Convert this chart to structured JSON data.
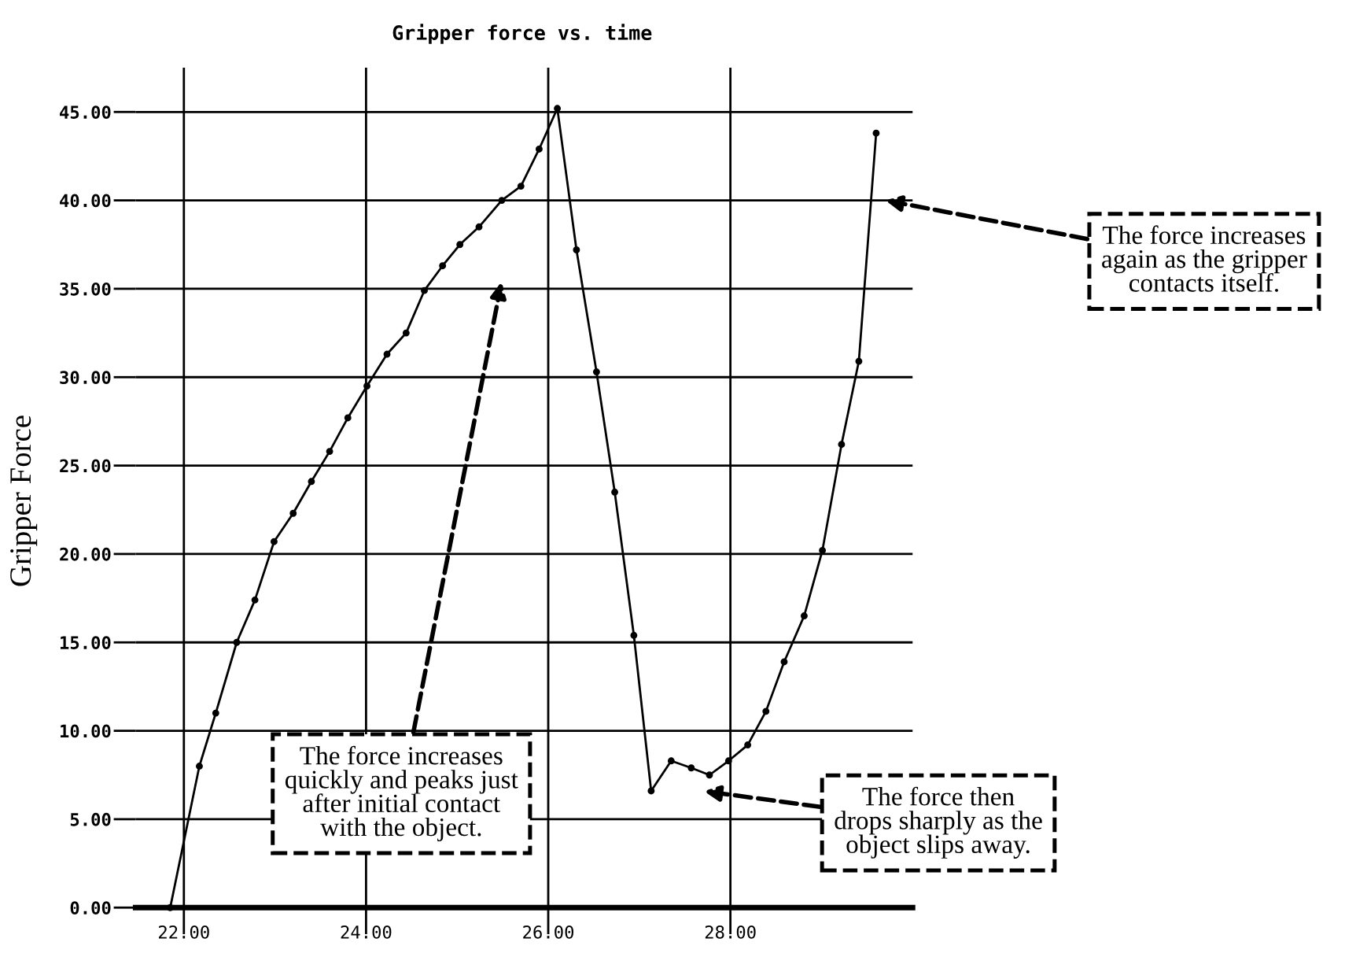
{
  "chart_data": {
    "type": "line",
    "title": "Gripper force vs. time",
    "ylabel": "Gripper Force",
    "series": [
      {
        "color": "#000000",
        "marker": "circle",
        "x": [
          21.85,
          22.17,
          22.35,
          22.58,
          22.78,
          22.99,
          23.2,
          23.4,
          23.6,
          23.8,
          24.01,
          24.23,
          24.44,
          24.64,
          24.84,
          25.03,
          25.24,
          25.49,
          25.7,
          25.9,
          26.1,
          26.31,
          26.53,
          26.73,
          26.94,
          27.13,
          27.35,
          27.57,
          27.77,
          27.98,
          28.19,
          28.39,
          28.59,
          28.81,
          29.01,
          29.22,
          29.41,
          29.6
        ],
        "values": [
          0,
          8.0,
          11.0,
          15.0,
          17.4,
          20.7,
          22.3,
          24.1,
          25.8,
          27.7,
          29.5,
          31.3,
          32.5,
          34.9,
          36.3,
          37.5,
          38.5,
          40.0,
          40.8,
          42.9,
          45.2,
          37.2,
          30.3,
          23.5,
          15.4,
          6.6,
          8.3,
          7.9,
          7.5,
          8.3,
          9.2,
          11.1,
          13.9,
          16.5,
          20.2,
          26.2,
          30.9,
          43.8
        ]
      }
    ],
    "xlim": [
      21.47,
      30.0
    ],
    "ylim": [
      -1.5,
      47.5
    ],
    "xticks": [
      {
        "value": 22,
        "label": "22.00"
      },
      {
        "value": 24,
        "label": "24.00"
      },
      {
        "value": 26,
        "label": "26.00"
      },
      {
        "value": 28,
        "label": "28.00"
      }
    ],
    "yticks": [
      {
        "value": 0,
        "label": "0.00"
      },
      {
        "value": 5,
        "label": "5.00"
      },
      {
        "value": 10,
        "label": "10.00"
      },
      {
        "value": 15,
        "label": "15.00"
      },
      {
        "value": 20,
        "label": "20.00"
      },
      {
        "value": 25,
        "label": "25.00"
      },
      {
        "value": 30,
        "label": "30.00"
      },
      {
        "value": 35,
        "label": "35.00"
      },
      {
        "value": 40,
        "label": "40.00"
      },
      {
        "value": 45,
        "label": "45.00"
      }
    ],
    "grid": true,
    "annotations": [
      "The force increases\nquickly and peaks just\nafter initial contact\nwith the object.",
      "The force then\ndrops sharply as the\nobject slips away.",
      "The force increases\nagain as the gripper\ncontacts itself."
    ]
  }
}
